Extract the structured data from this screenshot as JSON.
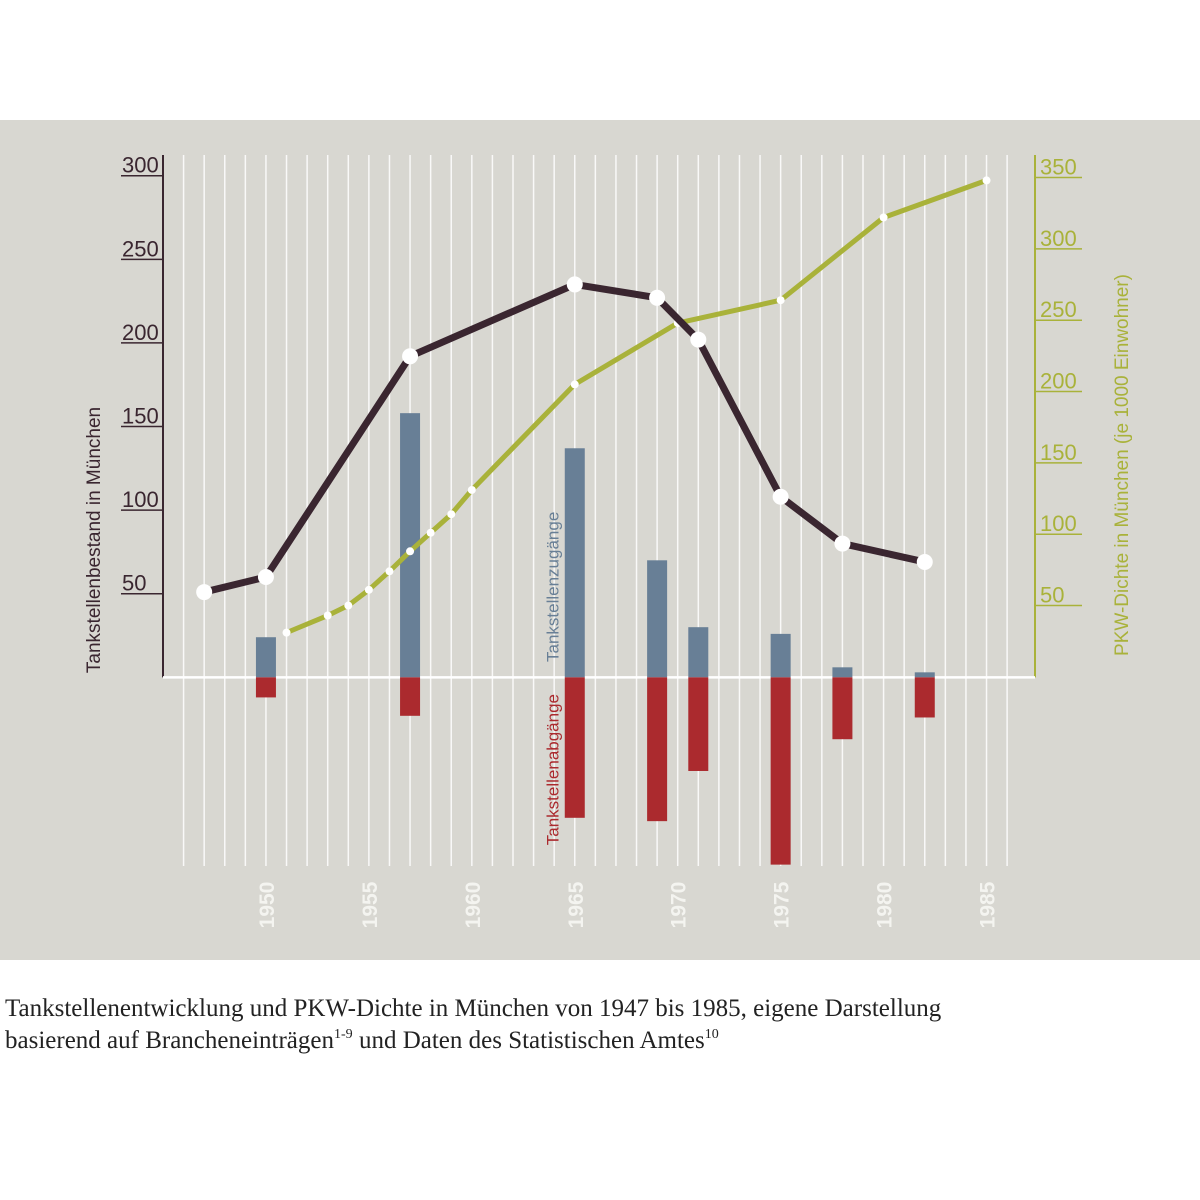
{
  "chart_data": {
    "type": "bar",
    "ylabel": "Tankstellenbestand in München",
    "y2label": "PKW-Dichte in München (je 1000 Einwohner)",
    "xlim": [
      1945,
      1987.5
    ],
    "xticks": [
      1950,
      1955,
      1960,
      1965,
      1970,
      1975,
      1980,
      1985
    ],
    "ylim": [
      -120,
      310
    ],
    "yticks": [
      50,
      100,
      150,
      200,
      250,
      300
    ],
    "y2lim": [
      -141,
      363
    ],
    "y2ticks": [
      50,
      100,
      150,
      200,
      250,
      300,
      350
    ],
    "grid": true,
    "series": [
      {
        "name": "Tankstellenzugänge",
        "type": "bar",
        "color": "#687f96",
        "x": [
          1950,
          1957,
          1965,
          1969,
          1971,
          1975,
          1978,
          1982
        ],
        "values": [
          24,
          158,
          137,
          70,
          30,
          26,
          6,
          3
        ]
      },
      {
        "name": "Tankstellenabgänge",
        "type": "bar",
        "color": "#ab2a2e",
        "x": [
          1950,
          1957,
          1965,
          1969,
          1971,
          1975,
          1978,
          1982
        ],
        "values": [
          -12,
          -23,
          -84,
          -86,
          -56,
          -112,
          -37,
          -24
        ]
      },
      {
        "type": "line",
        "color": "#3a2630",
        "x": [
          1947,
          1950,
          1957,
          1965,
          1969,
          1971,
          1975,
          1978,
          1982
        ],
        "values": [
          51,
          60,
          192,
          235,
          227,
          202,
          108,
          80,
          69
        ]
      },
      {
        "type": "line",
        "axis": "y2",
        "color": "#a9b23a",
        "x": [
          1951,
          1953,
          1954,
          1955,
          1956,
          1957,
          1958,
          1959,
          1960,
          1965,
          1970,
          1975,
          1980,
          1985
        ],
        "values": [
          31,
          43,
          50,
          61,
          74,
          88,
          101,
          114,
          131,
          205,
          248,
          264,
          322,
          348
        ]
      }
    ],
    "caption": {
      "line1": "Tankstellenentwicklung und PKW-Dichte in München von 1947 bis 1985, eigene Darstellung",
      "line2a": "basierend auf Brancheneinträgen",
      "sup1": "1-9",
      "line2b": " und Daten des Statistischen Amtes",
      "sup2": "10"
    }
  }
}
